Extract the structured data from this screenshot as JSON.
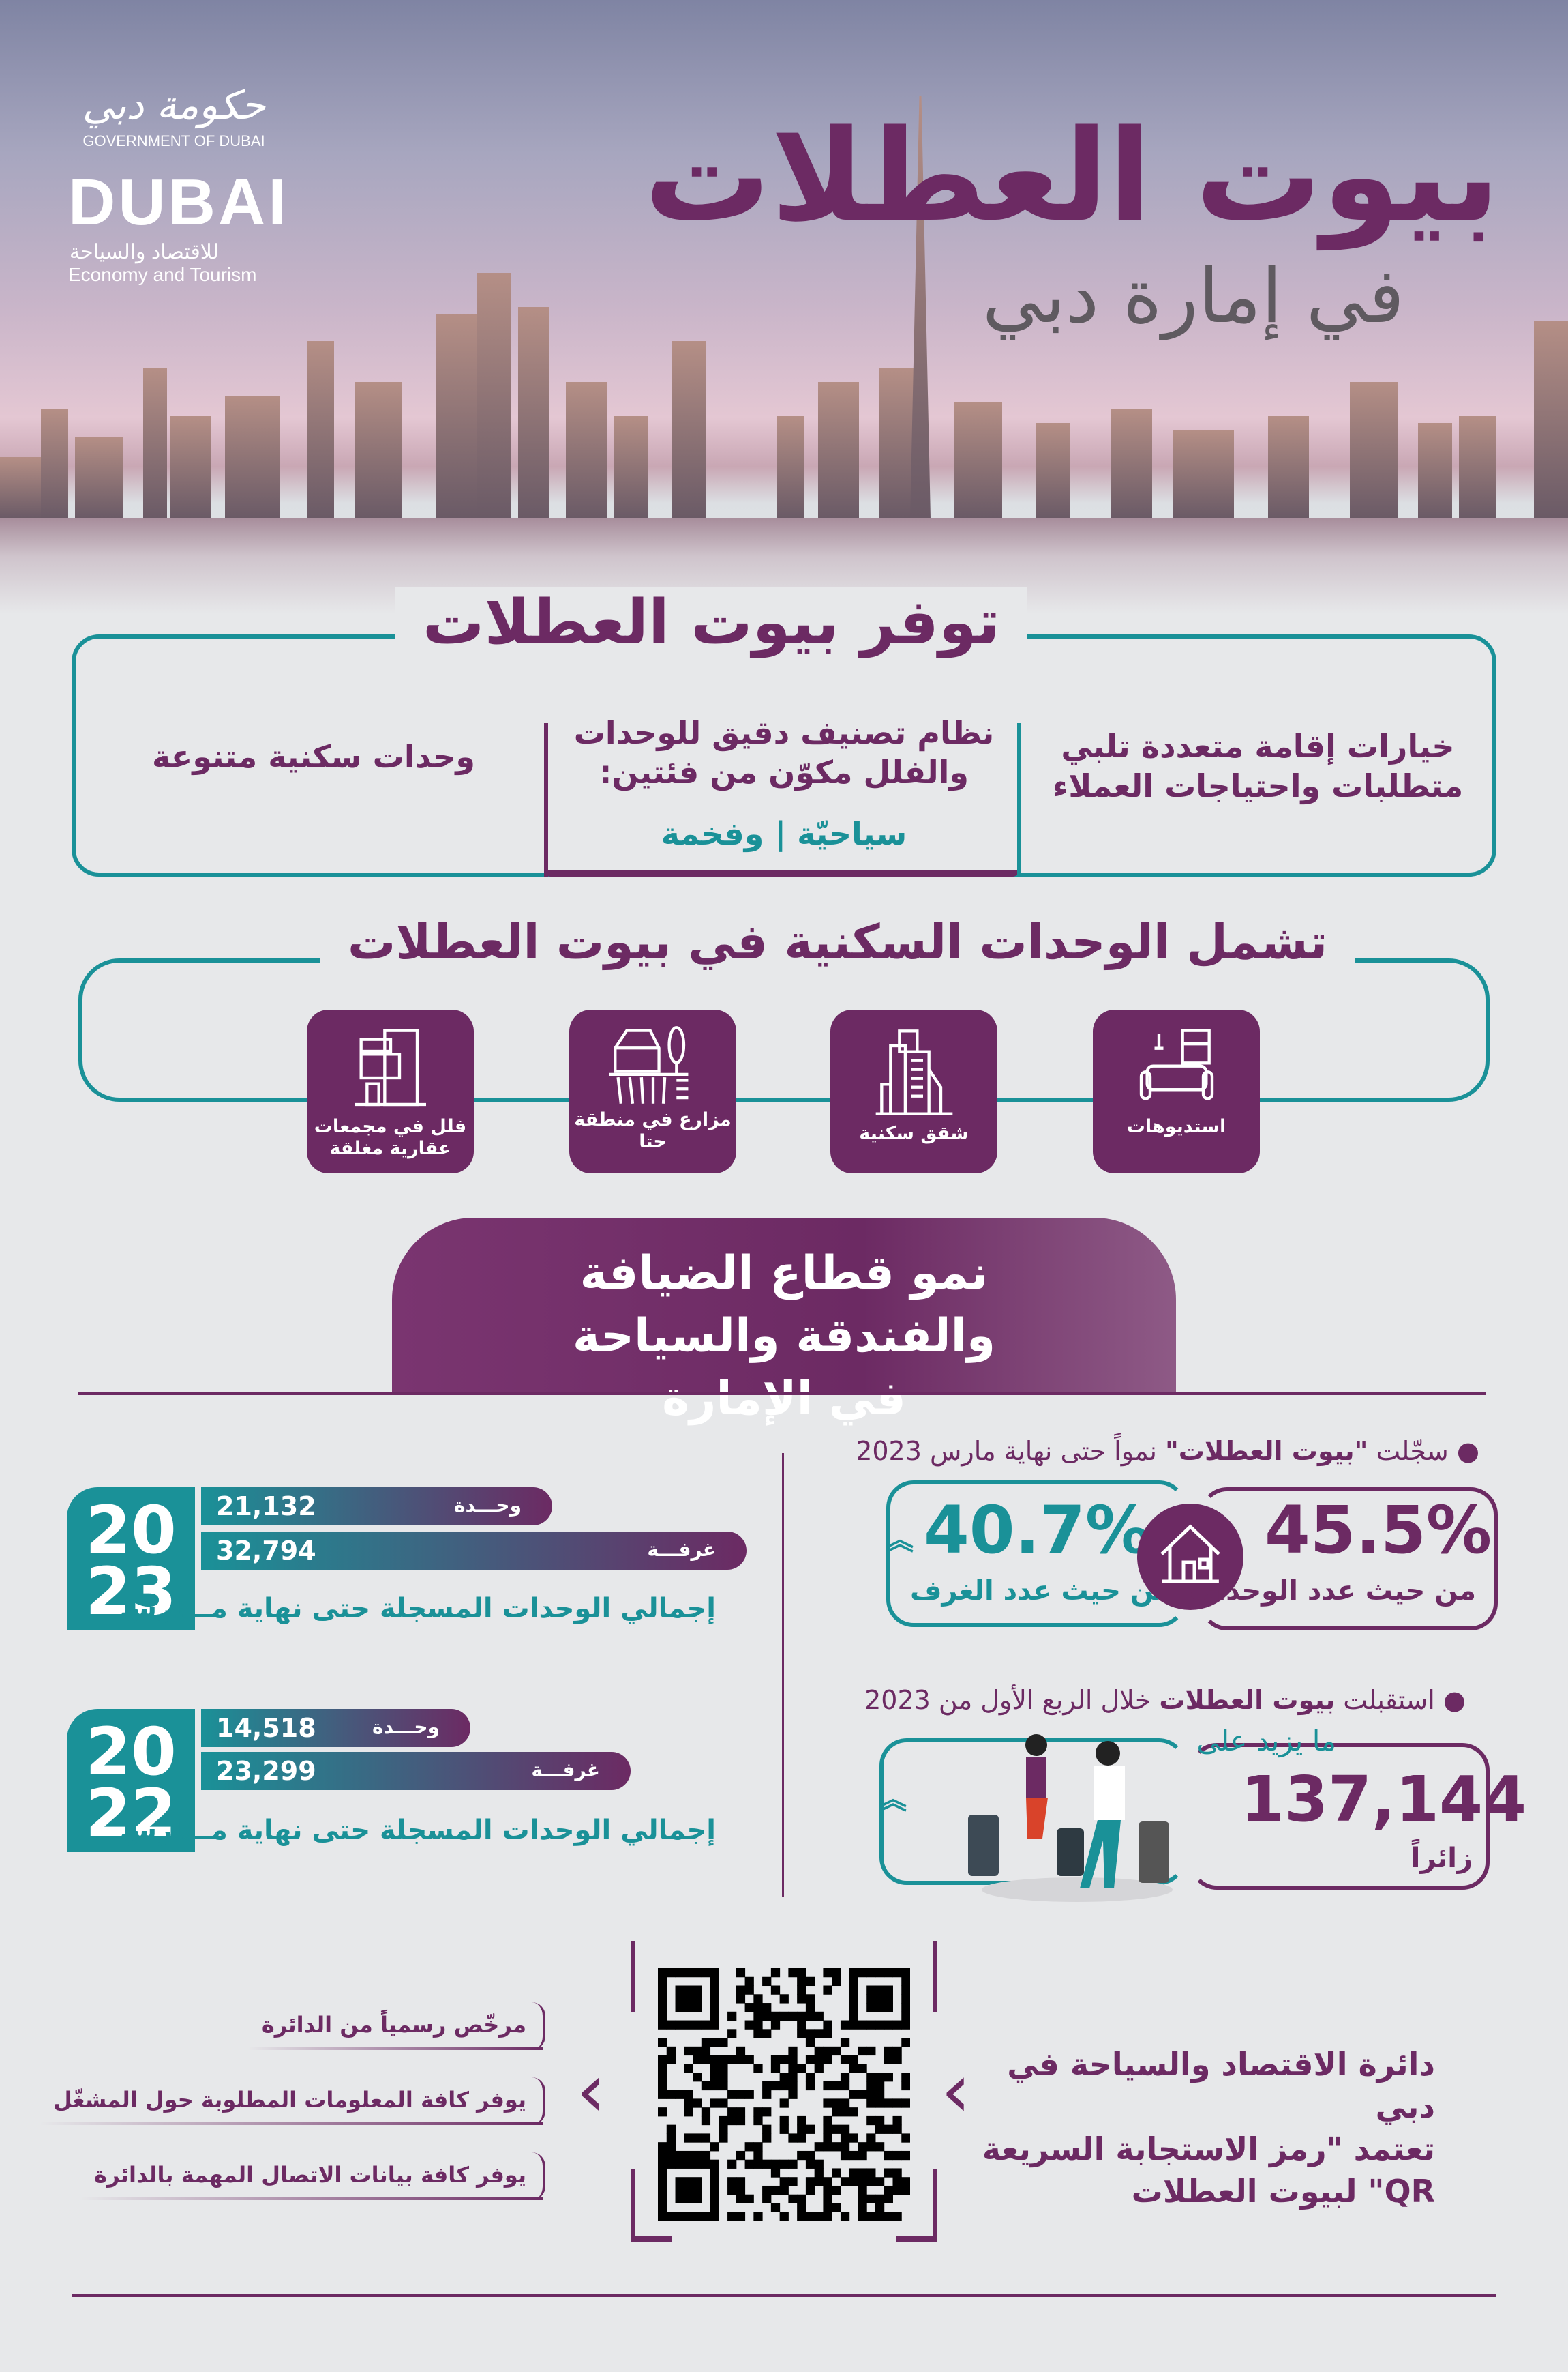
{
  "colors": {
    "purple": "#6c2a63",
    "teal": "#1a9198",
    "background": "#e7e8ea"
  },
  "logo": {
    "arabic": "حكومة دبي",
    "government": "GOVERNMENT OF DUBAI",
    "dubai": "DUBAI",
    "dept_arabic": "للاقتصاد والسياحة",
    "dept_english": "Economy and Tourism"
  },
  "header": {
    "title": "بيوت العطلات",
    "subtitle": "في إمارة دبي"
  },
  "features": {
    "title": "توفر بيوت العطلات",
    "items": [
      {
        "text": "خيارات إقامة متعددة تلبي متطلبات واحتياجات العملاء"
      },
      {
        "text": "نظام تصنيف دقيق للوحدات والفلل مكوّن من فئتين:",
        "cat1": "سياحيّة",
        "sep": "|",
        "cat2": "وفخمة"
      },
      {
        "text": "وحدات سكنية متنوعة"
      }
    ]
  },
  "units": {
    "title": "تشمل الوحدات السكنية في بيوت العطلات",
    "items": [
      {
        "label": "استديوهات",
        "icon": "sofa-icon"
      },
      {
        "label": "شقق سكنية",
        "icon": "apartment-building-icon"
      },
      {
        "label": "مزارع في منطقة حتا",
        "icon": "farm-icon"
      },
      {
        "label": "فلل في مجمعات عقارية مغلقة",
        "icon": "villa-icon"
      }
    ]
  },
  "growth": {
    "banner": "نمو قطاع الضيافة والفندقة والسياحة في الإمارة"
  },
  "years": [
    {
      "year_top": "20",
      "year_bottom": "23",
      "units": "21,132",
      "units_label": "وحـــدة",
      "rooms": "32,794",
      "rooms_label": "غرفـــة",
      "caption": "إجمالي الوحدات المسجلة حتى نهاية مـــارس"
    },
    {
      "year_top": "20",
      "year_bottom": "22",
      "units": "14,518",
      "units_label": "وحـــدة",
      "rooms": "23,299",
      "rooms_label": "غرفـــة",
      "caption": "إجمالي الوحدات المسجلة حتى نهاية مـــارس"
    }
  ],
  "stats": {
    "bullet1": {
      "pre": "سجّلت ",
      "bold": "\"بيوت العطلات\"",
      "post": " نمواً حتى نهاية مارس 2023"
    },
    "units_pct": "45.5%",
    "units_label": "من حيث عدد الوحدات",
    "rooms_pct": "40.7%",
    "rooms_label": "من حيث عدد الغرف",
    "bullet2": {
      "pre": "استقبلت ",
      "bold": "بيوت العطلات",
      "post": " خلال الربع الأول من 2023"
    },
    "more_than": "ما يزيد على",
    "visitors": "137,144",
    "visitors_label": "زائراً"
  },
  "qr": {
    "heading": [
      "دائرة الاقتصاد والسياحة في دبي",
      "تعتمد \"رمز الاستجابة السريعة",
      "QR\" لبيوت العطلات"
    ],
    "items": [
      "مرخّص رسمياً من الدائرة",
      "يوفر كافة المعلومات المطلوبة حول المشغّل",
      "يوفر كافة بيانات الاتصال المهمة بالدائرة"
    ]
  }
}
